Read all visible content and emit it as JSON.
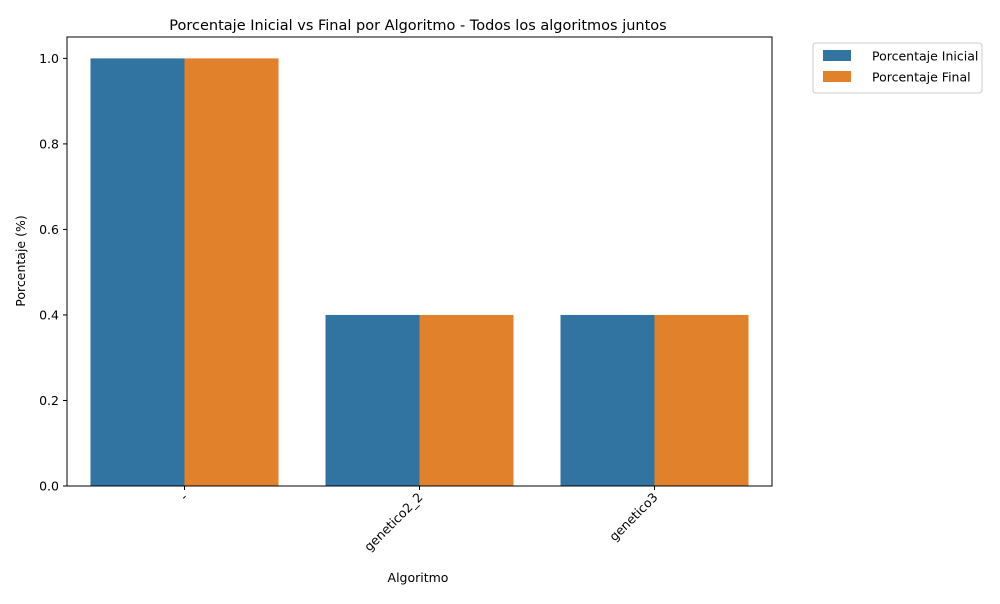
{
  "chart_data": {
    "type": "bar",
    "title": "Porcentaje Inicial vs Final por Algoritmo - Todos los algoritmos juntos",
    "xlabel": "Algoritmo",
    "ylabel": "Porcentaje (%)",
    "categories": [
      "-",
      "genetico2_2",
      "genetico3"
    ],
    "series": [
      {
        "name": "Porcentaje Inicial",
        "values": [
          1.0,
          0.4,
          0.4
        ],
        "color": "#3274a1"
      },
      {
        "name": "Porcentaje Final",
        "values": [
          1.0,
          0.4,
          0.4
        ],
        "color": "#e1812c"
      }
    ],
    "ylim": [
      0,
      1.05
    ],
    "yticks": [
      0.0,
      0.2,
      0.4,
      0.6,
      0.8,
      1.0
    ],
    "ytick_labels": [
      "0.0",
      "0.2",
      "0.4",
      "0.6",
      "0.8",
      "1.0"
    ],
    "xtick_rotation_deg": 45,
    "grid": false,
    "legend_position": "outside-top-right"
  }
}
